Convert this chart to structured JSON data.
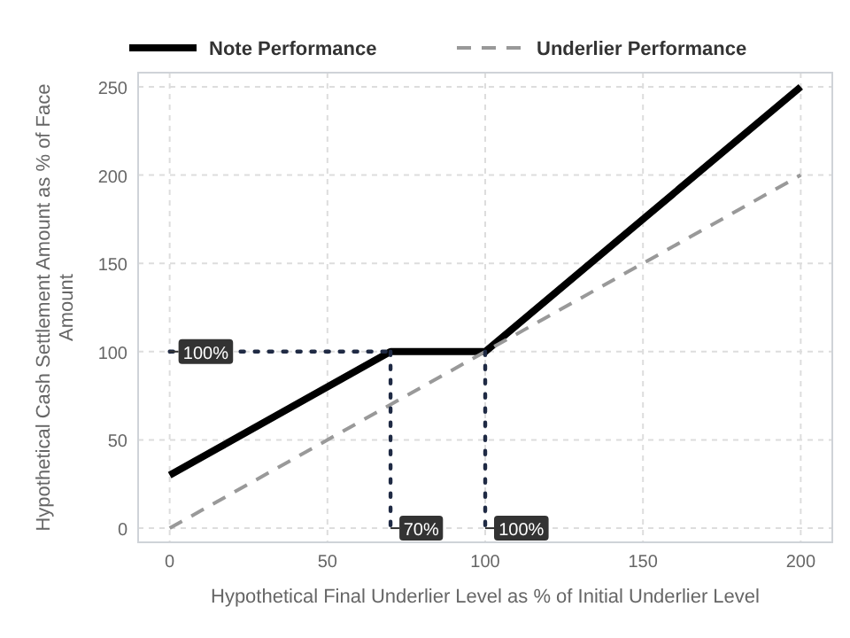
{
  "chart_data": {
    "type": "line",
    "xlabel": "Hypothetical Final Underlier Level as % of Initial Underlier Level",
    "ylabel": "Hypothetical Cash Settlement Amount as % of Face Amount",
    "xlim": [
      -10,
      210
    ],
    "ylim": [
      -8,
      258
    ],
    "xticks": [
      0,
      50,
      100,
      150,
      200
    ],
    "yticks": [
      0,
      50,
      100,
      150,
      200,
      250
    ],
    "grid": true,
    "legend": "top",
    "series": [
      {
        "name": "Note Performance",
        "color": "#000000",
        "x": [
          0,
          70,
          100,
          200
        ],
        "values": [
          30,
          100,
          100,
          250
        ],
        "line_style": "solid"
      },
      {
        "name": "Underlier Performance",
        "color": "#999999",
        "x": [
          0,
          200
        ],
        "values": [
          0,
          200
        ],
        "line_style": "dashed"
      },
      {
        "color": "#1f2a44",
        "x": [
          0,
          70
        ],
        "values": [
          100,
          100
        ],
        "line_style": "dotted"
      },
      {
        "color": "#1f2a44",
        "x": [
          70,
          70
        ],
        "values": [
          100,
          0
        ],
        "line_style": "dotted"
      },
      {
        "color": "#1f2a44",
        "x": [
          100,
          100
        ],
        "values": [
          100,
          0
        ],
        "line_style": "dotted"
      }
    ],
    "annotations": [
      {
        "text": "100%",
        "x": 0,
        "y": 100
      },
      {
        "text": "70%",
        "x": 70,
        "y": 0
      },
      {
        "text": "100%",
        "x": 100,
        "y": 0
      }
    ]
  }
}
